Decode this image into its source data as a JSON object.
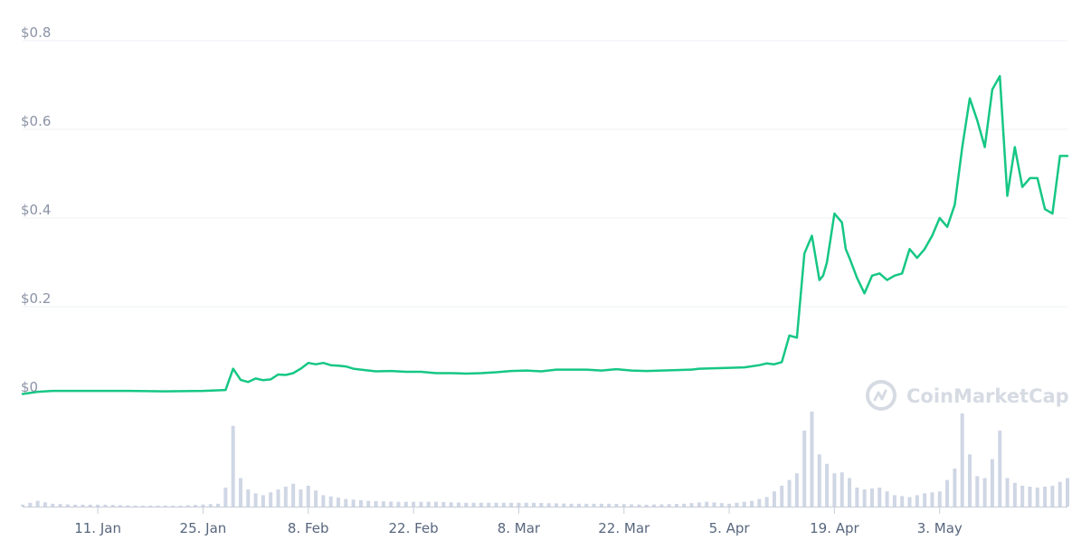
{
  "watermark": "CoinMarketCap",
  "colors": {
    "line": "#16c784",
    "volume": "#cfd6e4",
    "grid": "#edf0f5",
    "axis": "#e2e6ee",
    "watermark": "#d6dbe3"
  },
  "chart_data": {
    "type": "line",
    "y_tick_labels": [
      "$0",
      "$0.2",
      "$0.4",
      "$0.6",
      "$0.8"
    ],
    "y_ticks": [
      0,
      0.2,
      0.4,
      0.6,
      0.8
    ],
    "ylim": [
      -0.02,
      0.82
    ],
    "x_start": "2021-01-01",
    "x_end": "2021-05-20",
    "x_tick_dates": [
      "2021-01-11",
      "2021-01-25",
      "2021-02-08",
      "2021-02-22",
      "2021-03-08",
      "2021-03-22",
      "2021-04-05",
      "2021-04-19",
      "2021-05-03"
    ],
    "x_tick_labels": [
      "11. Jan",
      "25. Jan",
      "8. Feb",
      "22. Feb",
      "8. Mar",
      "22. Mar",
      "5. Apr",
      "19. Apr",
      "3. May"
    ],
    "grid": true,
    "series": [
      {
        "kind": "price",
        "dates": [
          "2021-01-01",
          "2021-01-03",
          "2021-01-05",
          "2021-01-10",
          "2021-01-15",
          "2021-01-20",
          "2021-01-25",
          "2021-01-28",
          "2021-01-29",
          "2021-01-30",
          "2021-01-31",
          "2021-02-01",
          "2021-02-02",
          "2021-02-03",
          "2021-02-04",
          "2021-02-05",
          "2021-02-06",
          "2021-02-07",
          "2021-02-08",
          "2021-02-09",
          "2021-02-10",
          "2021-02-11",
          "2021-02-12",
          "2021-02-13",
          "2021-02-14",
          "2021-02-15",
          "2021-02-17",
          "2021-02-19",
          "2021-02-21",
          "2021-02-23",
          "2021-02-25",
          "2021-02-27",
          "2021-03-01",
          "2021-03-03",
          "2021-03-05",
          "2021-03-07",
          "2021-03-09",
          "2021-03-11",
          "2021-03-13",
          "2021-03-15",
          "2021-03-17",
          "2021-03-19",
          "2021-03-21",
          "2021-03-23",
          "2021-03-25",
          "2021-03-27",
          "2021-03-29",
          "2021-03-31",
          "2021-04-01",
          "2021-04-03",
          "2021-04-05",
          "2021-04-07",
          "2021-04-09",
          "2021-04-10",
          "2021-04-11",
          "2021-04-12",
          "2021-04-13",
          "2021-04-14",
          "2021-04-15",
          "2021-04-16",
          "2021-04-17",
          "2021-04-17T12:00",
          "2021-04-18",
          "2021-04-19",
          "2021-04-20",
          "2021-04-20T12:00",
          "2021-04-21",
          "2021-04-22",
          "2021-04-23",
          "2021-04-24",
          "2021-04-25",
          "2021-04-26",
          "2021-04-27",
          "2021-04-28",
          "2021-04-29",
          "2021-04-30",
          "2021-05-01",
          "2021-05-02",
          "2021-05-03",
          "2021-05-04",
          "2021-05-05",
          "2021-05-06",
          "2021-05-07",
          "2021-05-08",
          "2021-05-09",
          "2021-05-10",
          "2021-05-11",
          "2021-05-12",
          "2021-05-13",
          "2021-05-14",
          "2021-05-15",
          "2021-05-16",
          "2021-05-17",
          "2021-05-18",
          "2021-05-19",
          "2021-05-20"
        ],
        "values": [
          0.003,
          0.008,
          0.01,
          0.01,
          0.01,
          0.009,
          0.01,
          0.012,
          0.06,
          0.035,
          0.03,
          0.038,
          0.034,
          0.036,
          0.047,
          0.046,
          0.05,
          0.06,
          0.073,
          0.07,
          0.073,
          0.068,
          0.067,
          0.065,
          0.06,
          0.058,
          0.054,
          0.055,
          0.053,
          0.053,
          0.05,
          0.05,
          0.049,
          0.05,
          0.052,
          0.055,
          0.056,
          0.054,
          0.058,
          0.058,
          0.058,
          0.056,
          0.059,
          0.056,
          0.055,
          0.056,
          0.057,
          0.058,
          0.06,
          0.061,
          0.062,
          0.063,
          0.068,
          0.072,
          0.07,
          0.075,
          0.135,
          0.13,
          0.32,
          0.36,
          0.26,
          0.27,
          0.3,
          0.41,
          0.39,
          0.33,
          0.31,
          0.265,
          0.23,
          0.27,
          0.275,
          0.26,
          0.27,
          0.275,
          0.33,
          0.31,
          0.33,
          0.36,
          0.4,
          0.38,
          0.43,
          0.56,
          0.67,
          0.62,
          0.56,
          0.69,
          0.72,
          0.45,
          0.56,
          0.47,
          0.49,
          0.49,
          0.42,
          0.41,
          0.54,
          0.54
        ]
      },
      {
        "kind": "volume",
        "dates": [
          "2021-01-01",
          "2021-01-03",
          "2021-01-05",
          "2021-01-08",
          "2021-01-12",
          "2021-01-16",
          "2021-01-22",
          "2021-01-27",
          "2021-01-28",
          "2021-01-29",
          "2021-01-30",
          "2021-01-31",
          "2021-02-01",
          "2021-02-02",
          "2021-02-04",
          "2021-02-06",
          "2021-02-07",
          "2021-02-08",
          "2021-02-10",
          "2021-02-13",
          "2021-02-16",
          "2021-02-20",
          "2021-02-25",
          "2021-03-01",
          "2021-03-05",
          "2021-03-10",
          "2021-03-15",
          "2021-03-20",
          "2021-03-25",
          "2021-03-30",
          "2021-04-02",
          "2021-04-05",
          "2021-04-08",
          "2021-04-10",
          "2021-04-12",
          "2021-04-13",
          "2021-04-14",
          "2021-04-15",
          "2021-04-16",
          "2021-04-17",
          "2021-04-18",
          "2021-04-19",
          "2021-04-20",
          "2021-04-21",
          "2021-04-22",
          "2021-04-23",
          "2021-04-25",
          "2021-04-27",
          "2021-04-29",
          "2021-05-01",
          "2021-05-03",
          "2021-05-05",
          "2021-05-06",
          "2021-05-07",
          "2021-05-08",
          "2021-05-09",
          "2021-05-10",
          "2021-05-11",
          "2021-05-12",
          "2021-05-13",
          "2021-05-14",
          "2021-05-16",
          "2021-05-18",
          "2021-05-20"
        ],
        "values": [
          0.02,
          0.06,
          0.03,
          0.02,
          0.02,
          0.01,
          0.01,
          0.03,
          0.2,
          0.85,
          0.3,
          0.18,
          0.14,
          0.12,
          0.18,
          0.24,
          0.18,
          0.22,
          0.12,
          0.08,
          0.06,
          0.05,
          0.05,
          0.04,
          0.04,
          0.04,
          0.03,
          0.03,
          0.02,
          0.03,
          0.05,
          0.03,
          0.06,
          0.1,
          0.22,
          0.28,
          0.35,
          0.8,
          1.0,
          0.55,
          0.45,
          0.35,
          0.36,
          0.3,
          0.2,
          0.18,
          0.2,
          0.12,
          0.1,
          0.14,
          0.16,
          0.4,
          0.98,
          0.55,
          0.32,
          0.3,
          0.5,
          0.8,
          0.3,
          0.25,
          0.22,
          0.2,
          0.22,
          0.3
        ]
      }
    ]
  }
}
